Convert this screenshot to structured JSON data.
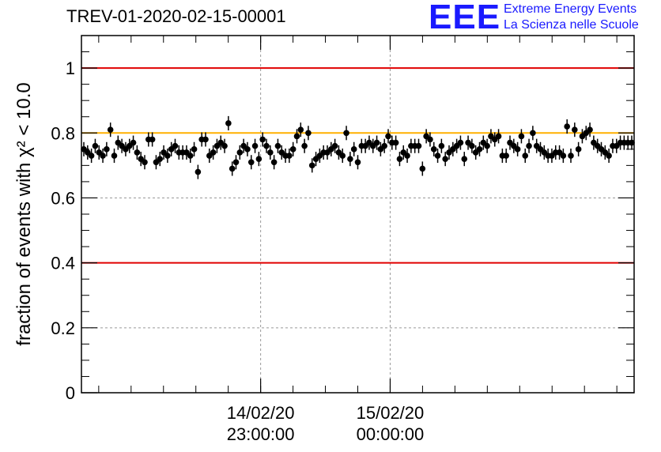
{
  "title": "TREV-01-2020-02-15-00001",
  "logo": {
    "mark": "EEE",
    "line1": "Extreme Energy Events",
    "line2": "La Scienza nelle Scuole",
    "color": "#1a1aff"
  },
  "chart_data": {
    "type": "scatter",
    "title": "TREV-01-2020-02-15-00001",
    "ylabel": "fraction of events with χ² < 10.0",
    "ylim": [
      0,
      1.1
    ],
    "xlim": [
      "2020-02-14 21:37",
      "2020-02-15 01:53"
    ],
    "yticks": [
      {
        "value": 0,
        "label": "0"
      },
      {
        "value": 0.2,
        "label": "0.2"
      },
      {
        "value": 0.4,
        "label": "0.4"
      },
      {
        "value": 0.6,
        "label": "0.6"
      },
      {
        "value": 0.8,
        "label": "0.8"
      },
      {
        "value": 1,
        "label": "1"
      }
    ],
    "xticks": [
      {
        "time": "2020-02-14 23:00",
        "date": "14/02/20",
        "time_label": "23:00:00"
      },
      {
        "time": "2020-02-15 00:00",
        "date": "15/02/20",
        "time_label": "00:00:00"
      }
    ],
    "reference_lines": [
      {
        "value": 1.0,
        "color": "#e00000"
      },
      {
        "value": 0.8,
        "color": "#ffb000"
      },
      {
        "value": 0.4,
        "color": "#e00000"
      }
    ],
    "grid": true,
    "marker_color": "#000000",
    "error": 0.022,
    "series": [
      {
        "values": [
          0.75,
          0.74,
          0.73,
          0.76,
          0.74,
          0.73,
          0.75,
          0.81,
          0.73,
          0.77,
          0.76,
          0.75,
          0.76,
          0.77,
          0.74,
          0.72,
          0.71,
          0.78,
          0.78,
          0.71,
          0.72,
          0.74,
          0.73,
          0.75,
          0.76,
          0.74,
          0.74,
          0.74,
          0.73,
          0.75,
          0.68,
          0.78,
          0.78,
          0.73,
          0.74,
          0.76,
          0.77,
          0.76,
          0.83,
          0.69,
          0.71,
          0.74,
          0.76,
          0.75,
          0.71,
          0.76,
          0.72,
          0.78,
          0.76,
          0.74,
          0.71,
          0.76,
          0.74,
          0.73,
          0.73,
          0.75,
          0.79,
          0.81,
          0.76,
          0.8,
          0.7,
          0.72,
          0.73,
          0.74,
          0.74,
          0.75,
          0.76,
          0.74,
          0.73,
          0.8,
          0.72,
          0.75,
          0.71,
          0.76,
          0.76,
          0.77,
          0.76,
          0.77,
          0.75,
          0.76,
          0.79,
          0.77,
          0.77,
          0.72,
          0.74,
          0.73,
          0.76,
          0.76,
          0.76,
          0.69,
          0.79,
          0.78,
          0.75,
          0.73,
          0.76,
          0.72,
          0.74,
          0.75,
          0.76,
          0.77,
          0.72,
          0.77,
          0.76,
          0.74,
          0.75,
          0.77,
          0.76,
          0.79,
          0.78,
          0.79,
          0.73,
          0.73,
          0.77,
          0.76,
          0.75,
          0.79,
          0.73,
          0.76,
          0.8,
          0.76,
          0.75,
          0.74,
          0.73,
          0.73,
          0.74,
          0.74,
          0.73,
          0.82,
          0.73,
          0.81,
          0.75,
          0.79,
          0.8,
          0.81,
          0.77,
          0.76,
          0.75,
          0.74,
          0.73,
          0.76,
          0.76,
          0.77,
          0.77,
          0.77,
          0.77
        ]
      }
    ]
  }
}
